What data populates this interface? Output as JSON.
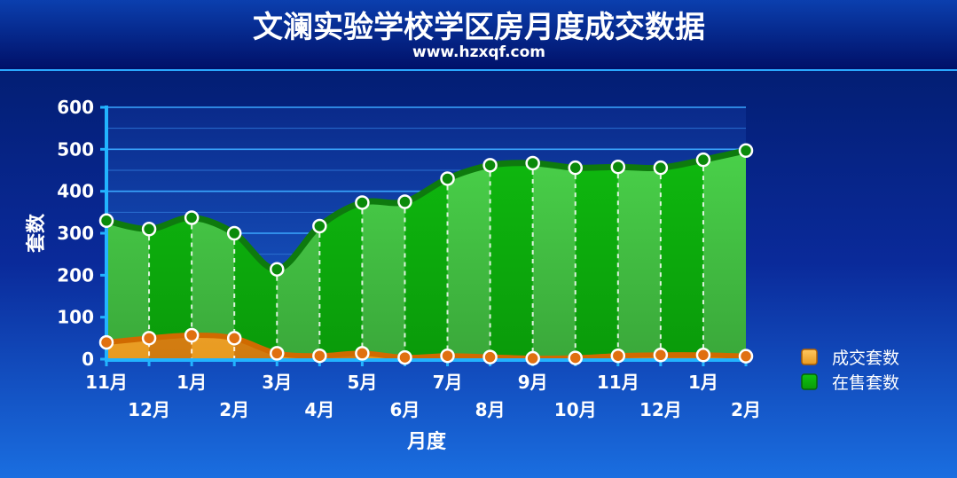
{
  "title": "文澜实验学校学区房月度成交数据",
  "subtitle": "www.hzxqf.com",
  "chart_data": {
    "type": "area",
    "xlabel": "月度",
    "ylabel": "套数",
    "ylim": [
      0,
      600
    ],
    "yticks": [
      0,
      100,
      200,
      300,
      400,
      500,
      600
    ],
    "grid": true,
    "legend_position": "right",
    "categories": [
      "11月",
      "12月",
      "1月",
      "2月",
      "3月",
      "4月",
      "5月",
      "6月",
      "7月",
      "8月",
      "9月",
      "10月",
      "11月",
      "12月",
      "1月",
      "2月"
    ],
    "series": [
      {
        "name": "成交套数",
        "color": "#f0a020",
        "values": [
          40,
          50,
          57,
          50,
          14,
          8,
          14,
          4,
          8,
          5,
          2,
          3,
          8,
          10,
          10,
          7
        ]
      },
      {
        "name": "在售套数",
        "color": "#18c018",
        "values": [
          330,
          310,
          337,
          300,
          214,
          317,
          373,
          375,
          430,
          462,
          467,
          456,
          458,
          456,
          475,
          497
        ]
      }
    ]
  }
}
